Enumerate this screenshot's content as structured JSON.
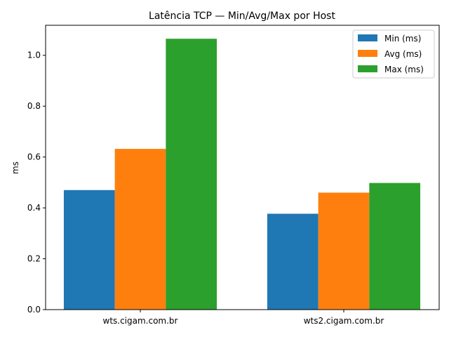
{
  "chart_data": {
    "type": "bar",
    "title": "Latência TCP — Min/Avg/Max por Host",
    "xlabel": "",
    "ylabel": "ms",
    "categories": [
      "wts.cigam.com.br",
      "wts2.cigam.com.br"
    ],
    "series": [
      {
        "name": "Min (ms)",
        "color": "#1f77b4",
        "values": [
          0.47,
          0.377
        ]
      },
      {
        "name": "Avg (ms)",
        "color": "#ff7f0e",
        "values": [
          0.632,
          0.46
        ]
      },
      {
        "name": "Max (ms)",
        "color": "#2ca02c",
        "values": [
          1.065,
          0.498
        ]
      }
    ],
    "ylim": [
      0,
      1.118
    ],
    "yticks": [
      0.0,
      0.2,
      0.4,
      0.6,
      0.8,
      1.0
    ],
    "ytick_labels": [
      "0.0",
      "0.2",
      "0.4",
      "0.6",
      "0.8",
      "1.0"
    ],
    "grid": false,
    "legend_position": "top-right"
  }
}
